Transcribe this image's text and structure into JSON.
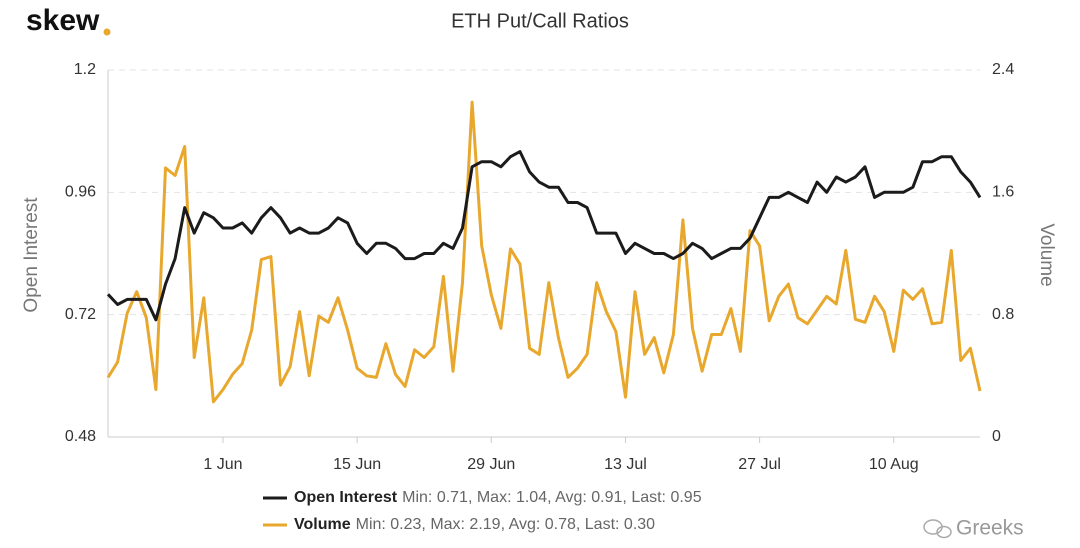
{
  "logo": "skew",
  "watermark": "Greeks",
  "chart_data": {
    "type": "line",
    "title": "ETH Put/Call Ratios",
    "ylabel": "Open Interest",
    "y2label": "Volume",
    "categories": [
      null,
      null,
      null,
      null,
      null,
      null,
      null,
      null,
      null,
      null,
      null,
      null,
      "1 Jun",
      null,
      null,
      null,
      null,
      null,
      null,
      null,
      null,
      null,
      null,
      null,
      null,
      null,
      "15 Jun",
      null,
      null,
      null,
      null,
      null,
      null,
      null,
      null,
      null,
      null,
      null,
      null,
      null,
      "29 Jun",
      null,
      null,
      null,
      null,
      null,
      null,
      null,
      null,
      null,
      null,
      null,
      null,
      null,
      "13 Jul",
      null,
      null,
      null,
      null,
      null,
      null,
      null,
      null,
      null,
      null,
      null,
      null,
      null,
      "27 Jul",
      null,
      null,
      null,
      null,
      null,
      null,
      null,
      null,
      null,
      null,
      null,
      null,
      null,
      "10 Aug",
      null,
      null,
      null,
      null,
      null,
      null,
      null,
      null,
      null
    ],
    "ylim": [
      0.48,
      1.2
    ],
    "yticks": [
      0.48,
      0.72,
      0.96,
      1.2
    ],
    "y2lim": [
      0,
      2.4
    ],
    "y2ticks": [
      0,
      0.8,
      1.6,
      2.4
    ],
    "grid": true,
    "series": [
      {
        "name": "Open Interest",
        "color": "#1b1b1b",
        "summary": "Min: 0.71, Max: 1.04, Avg: 0.91, Last: 0.95",
        "values": [
          0.76,
          0.74,
          0.75,
          0.75,
          0.75,
          0.71,
          0.78,
          0.83,
          0.93,
          0.88,
          0.92,
          0.91,
          0.89,
          0.89,
          0.9,
          0.88,
          0.91,
          0.93,
          0.91,
          0.88,
          0.89,
          0.88,
          0.88,
          0.89,
          0.91,
          0.9,
          0.86,
          0.84,
          0.86,
          0.86,
          0.85,
          0.83,
          0.83,
          0.84,
          0.84,
          0.86,
          0.85,
          0.89,
          1.01,
          1.02,
          1.02,
          1.01,
          1.03,
          1.04,
          1.0,
          0.98,
          0.97,
          0.97,
          0.94,
          0.94,
          0.93,
          0.88,
          0.88,
          0.88,
          0.84,
          0.86,
          0.85,
          0.84,
          0.84,
          0.83,
          0.84,
          0.86,
          0.85,
          0.83,
          0.84,
          0.85,
          0.85,
          0.87,
          0.91,
          0.95,
          0.95,
          0.96,
          0.95,
          0.94,
          0.98,
          0.96,
          0.99,
          0.98,
          0.99,
          1.01,
          0.95,
          0.96,
          0.96,
          0.96,
          0.97,
          1.02,
          1.02,
          1.03,
          1.03,
          1.0,
          0.98,
          0.95
        ]
      },
      {
        "name": "Volume",
        "color": "#e8a82e",
        "axis": "y2",
        "summary": "Min: 0.23, Max: 2.19, Avg: 0.78, Last: 0.30",
        "values": [
          0.39,
          0.49,
          0.81,
          0.95,
          0.78,
          0.31,
          1.76,
          1.71,
          1.9,
          0.52,
          0.91,
          0.23,
          0.31,
          0.41,
          0.48,
          0.7,
          1.16,
          1.18,
          0.34,
          0.46,
          0.82,
          0.4,
          0.79,
          0.75,
          0.91,
          0.7,
          0.45,
          0.4,
          0.39,
          0.61,
          0.41,
          0.33,
          0.57,
          0.52,
          0.59,
          1.05,
          0.43,
          1.01,
          2.19,
          1.25,
          0.93,
          0.71,
          1.23,
          1.13,
          0.58,
          0.54,
          1.01,
          0.65,
          0.39,
          0.45,
          0.54,
          1.01,
          0.82,
          0.69,
          0.26,
          0.95,
          0.54,
          0.65,
          0.42,
          0.67,
          1.42,
          0.71,
          0.43,
          0.67,
          0.67,
          0.84,
          0.56,
          1.35,
          1.25,
          0.76,
          0.92,
          1.0,
          0.78,
          0.74,
          0.83,
          0.92,
          0.87,
          1.22,
          0.77,
          0.75,
          0.92,
          0.82,
          0.56,
          0.96,
          0.9,
          0.97,
          0.74,
          0.75,
          1.22,
          0.5,
          0.58,
          0.3
        ]
      }
    ]
  }
}
